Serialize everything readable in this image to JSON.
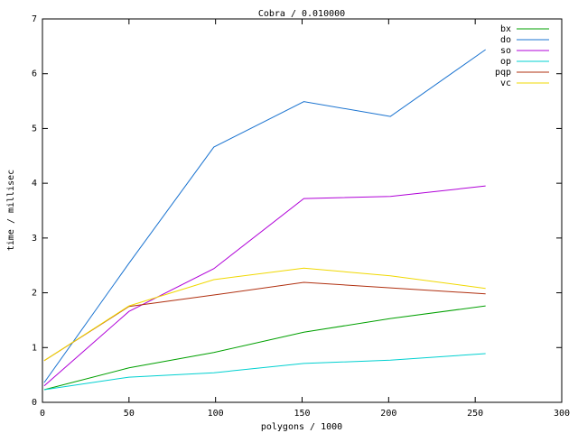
{
  "chart_data": {
    "type": "line",
    "title": "Cobra / 0.010000",
    "x_label": "polygons / 1000",
    "y_label": "time / millisec",
    "x": [
      1,
      50,
      99,
      151,
      201,
      256
    ],
    "xlim": [
      0,
      300
    ],
    "xticks": [
      0,
      50,
      100,
      150,
      200,
      250,
      300
    ],
    "ylim": [
      0,
      7
    ],
    "yticks": [
      0,
      1,
      2,
      3,
      4,
      5,
      6,
      7
    ],
    "legend": "top-right",
    "series": [
      {
        "name": "bx",
        "color": "#00a000",
        "values": [
          0.23,
          0.63,
          0.91,
          1.28,
          1.53,
          1.76
        ]
      },
      {
        "name": "do",
        "color": "#1a73d0",
        "values": [
          0.36,
          2.54,
          4.66,
          5.49,
          5.22,
          6.44
        ]
      },
      {
        "name": "so",
        "color": "#b000d8",
        "values": [
          0.3,
          1.66,
          2.44,
          3.72,
          3.76,
          3.95
        ]
      },
      {
        "name": "op",
        "color": "#00d0d0",
        "values": [
          0.23,
          0.46,
          0.54,
          0.71,
          0.77,
          0.89
        ]
      },
      {
        "name": "pqp",
        "color": "#b03010",
        "values": [
          0.76,
          1.75,
          1.96,
          2.19,
          2.09,
          1.98
        ]
      },
      {
        "name": "vc",
        "color": "#f0d800",
        "values": [
          0.76,
          1.76,
          2.24,
          2.45,
          2.31,
          2.08
        ]
      }
    ]
  }
}
